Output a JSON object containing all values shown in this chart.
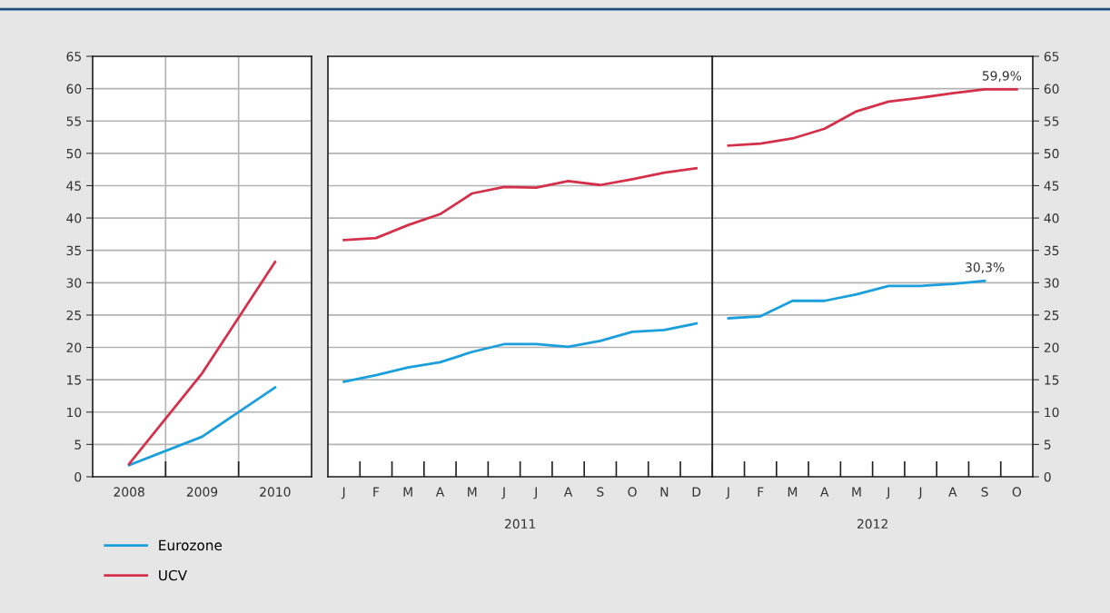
{
  "chart_data": [
    {
      "type": "line",
      "categories": [
        "2008",
        "2009",
        "2010"
      ],
      "ylim": [
        0,
        65
      ],
      "yticks": [
        0,
        5,
        10,
        15,
        20,
        25,
        30,
        35,
        40,
        45,
        50,
        55,
        60,
        65
      ],
      "grid": true,
      "legend": "bottom left",
      "marker": "none",
      "line_style": "solid",
      "series": [
        {
          "name": "Eurozone",
          "color": "#1a9fdc",
          "values": [
            1.8,
            6.2,
            13.8
          ]
        },
        {
          "name": "UCV",
          "color": "#d5304a",
          "values": [
            2.0,
            16.0,
            33.2
          ]
        }
      ]
    },
    {
      "type": "line",
      "categories": [
        "J",
        "F",
        "M",
        "A",
        "M",
        "J",
        "J",
        "A",
        "S",
        "O",
        "N",
        "D"
      ],
      "ylim": [
        0,
        65
      ],
      "yticks": [
        0,
        5,
        10,
        15,
        20,
        25,
        30,
        35,
        40,
        45,
        50,
        55,
        60,
        65
      ],
      "tick_labels": "x",
      "grid": "y",
      "marker": "none",
      "line_style": "solid",
      "annotations": [
        "2011"
      ],
      "series": [
        {
          "color": "#1a9fdc",
          "values": [
            14.7,
            15.7,
            16.9,
            17.7,
            19.3,
            20.5,
            20.5,
            20.1,
            21.0,
            22.4,
            22.7,
            23.7
          ]
        },
        {
          "color": "#d5304a",
          "values": [
            36.6,
            36.9,
            38.9,
            40.6,
            43.8,
            44.8,
            44.7,
            45.7,
            45.1,
            46.0,
            47.0,
            47.7
          ]
        }
      ]
    },
    {
      "type": "line",
      "categories": [
        "J",
        "F",
        "M",
        "A",
        "M",
        "J",
        "J",
        "A",
        "S",
        "O"
      ],
      "ylim": [
        0,
        65
      ],
      "yticks": [
        0,
        5,
        10,
        15,
        20,
        25,
        30,
        35,
        40,
        45,
        50,
        55,
        60,
        65
      ],
      "grid": "y",
      "marker": "none",
      "line_style": "solid",
      "annotations": [
        "2012"
      ],
      "series": [
        {
          "color": "#1a9fdc",
          "values": [
            24.5,
            24.8,
            27.2,
            27.2,
            28.2,
            29.5,
            29.5,
            29.8,
            30.3,
            null
          ],
          "value_labels": [
            null,
            null,
            null,
            null,
            null,
            null,
            null,
            null,
            "30,3%",
            null
          ]
        },
        {
          "color": "#d5304a",
          "values": [
            51.2,
            51.5,
            52.3,
            53.8,
            56.5,
            58.0,
            58.6,
            59.3,
            59.9,
            59.9
          ],
          "value_labels": [
            null,
            null,
            null,
            null,
            null,
            null,
            null,
            null,
            null,
            "59,9%"
          ]
        }
      ]
    }
  ]
}
